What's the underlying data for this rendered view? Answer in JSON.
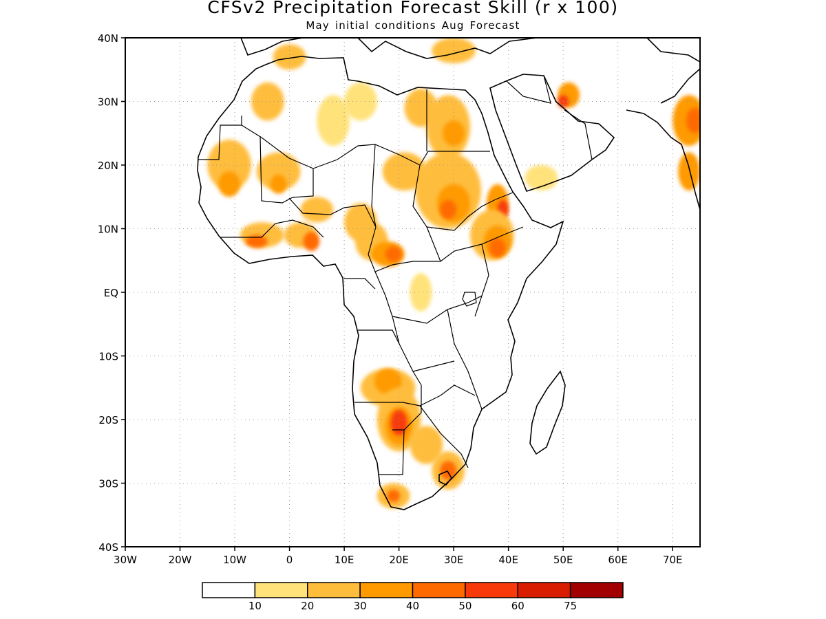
{
  "title": "CFSv2 Precipitation Forecast Skill (r x 100)",
  "subtitle": "May initial conditions  Aug Forecast",
  "map": {
    "projection": "lat-lon",
    "lon_range": [
      -30,
      75
    ],
    "lat_range": [
      -40,
      40
    ],
    "grid": "dotted",
    "lat_labels": [
      "40N",
      "30N",
      "20N",
      "10N",
      "EQ",
      "10S",
      "20S",
      "30S",
      "40S"
    ],
    "lon_labels": [
      "30W",
      "20W",
      "10W",
      "0",
      "10E",
      "20E",
      "30E",
      "40E",
      "50E",
      "60E",
      "70E"
    ]
  },
  "colorbar": {
    "colors": [
      "#ffffff",
      "#ffe27a",
      "#ffbd3c",
      "#ff9a00",
      "#ff6a00",
      "#f83a0a",
      "#d81d00",
      "#a20000"
    ],
    "labels": [
      "10",
      "20",
      "30",
      "40",
      "50",
      "60",
      "75"
    ]
  },
  "skill_regions": [
    {
      "lon": 0,
      "lat": 37,
      "rx": 3,
      "ry": 2,
      "level": 2
    },
    {
      "lon": -4,
      "lat": 30,
      "rx": 3,
      "ry": 3,
      "level": 2
    },
    {
      "lon": -11,
      "lat": 20,
      "rx": 4,
      "ry": 4,
      "level": 2
    },
    {
      "lon": -11,
      "lat": 17,
      "rx": 2,
      "ry": 2,
      "level": 3
    },
    {
      "lon": -2,
      "lat": 19,
      "rx": 4,
      "ry": 3,
      "level": 2
    },
    {
      "lon": -2,
      "lat": 17,
      "rx": 1.5,
      "ry": 1.5,
      "level": 3
    },
    {
      "lon": 8,
      "lat": 27,
      "rx": 3,
      "ry": 4,
      "level": 1
    },
    {
      "lon": 13,
      "lat": 30,
      "rx": 3,
      "ry": 3,
      "level": 1
    },
    {
      "lon": 24,
      "lat": 29,
      "rx": 3,
      "ry": 3,
      "level": 2
    },
    {
      "lon": 29,
      "lat": 26,
      "rx": 4,
      "ry": 5,
      "level": 2
    },
    {
      "lon": 30,
      "lat": 25,
      "rx": 2,
      "ry": 2,
      "level": 3
    },
    {
      "lon": 21,
      "lat": 19,
      "rx": 4,
      "ry": 3,
      "level": 2
    },
    {
      "lon": 29,
      "lat": 16,
      "rx": 6,
      "ry": 6,
      "level": 2
    },
    {
      "lon": 30,
      "lat": 14,
      "rx": 3,
      "ry": 3,
      "level": 3
    },
    {
      "lon": 29,
      "lat": 13,
      "rx": 1.5,
      "ry": 1.5,
      "level": 4
    },
    {
      "lon": 38,
      "lat": 14,
      "rx": 2,
      "ry": 3,
      "level": 3
    },
    {
      "lon": 39,
      "lat": 13,
      "rx": 1,
      "ry": 1.5,
      "level": 5
    },
    {
      "lon": 37,
      "lat": 9,
      "rx": 4,
      "ry": 4,
      "level": 2
    },
    {
      "lon": 38,
      "lat": 8,
      "rx": 2.5,
      "ry": 2.5,
      "level": 3
    },
    {
      "lon": 38,
      "lat": 7,
      "rx": 1.5,
      "ry": 1.5,
      "level": 4
    },
    {
      "lon": 46,
      "lat": 18,
      "rx": 3,
      "ry": 2,
      "level": 1
    },
    {
      "lon": 5,
      "lat": 13,
      "rx": 3,
      "ry": 2,
      "level": 2
    },
    {
      "lon": 13,
      "lat": 11,
      "rx": 3,
      "ry": 3,
      "level": 2
    },
    {
      "lon": -5,
      "lat": 9,
      "rx": 4,
      "ry": 2,
      "level": 2
    },
    {
      "lon": -6,
      "lat": 8,
      "rx": 2,
      "ry": 1,
      "level": 4
    },
    {
      "lon": 2,
      "lat": 9,
      "rx": 3,
      "ry": 2,
      "level": 2
    },
    {
      "lon": 4,
      "lat": 8,
      "rx": 1.5,
      "ry": 1.5,
      "level": 4
    },
    {
      "lon": 15,
      "lat": 8,
      "rx": 3,
      "ry": 3,
      "level": 2
    },
    {
      "lon": 18,
      "lat": 6,
      "rx": 3,
      "ry": 2,
      "level": 3
    },
    {
      "lon": 19,
      "lat": 6,
      "rx": 1.5,
      "ry": 1.2,
      "level": 4
    },
    {
      "lon": 24,
      "lat": 0,
      "rx": 2,
      "ry": 3,
      "level": 1
    },
    {
      "lon": 18,
      "lat": -15,
      "rx": 5,
      "ry": 3,
      "level": 2
    },
    {
      "lon": 18,
      "lat": -14,
      "rx": 2.5,
      "ry": 2,
      "level": 3
    },
    {
      "lon": 20,
      "lat": -20,
      "rx": 4,
      "ry": 5,
      "level": 2
    },
    {
      "lon": 20,
      "lat": -21,
      "rx": 2.5,
      "ry": 3,
      "level": 3
    },
    {
      "lon": 20,
      "lat": -20.5,
      "rx": 1.5,
      "ry": 2,
      "level": 5
    },
    {
      "lon": 25,
      "lat": -24,
      "rx": 3,
      "ry": 3,
      "level": 2
    },
    {
      "lon": 29,
      "lat": -28,
      "rx": 3,
      "ry": 3,
      "level": 2
    },
    {
      "lon": 29,
      "lat": -28,
      "rx": 1.5,
      "ry": 1.5,
      "level": 4
    },
    {
      "lon": 19,
      "lat": -32,
      "rx": 3,
      "ry": 2,
      "level": 2
    },
    {
      "lon": 19,
      "lat": -32,
      "rx": 1.2,
      "ry": 1,
      "level": 4
    },
    {
      "lon": 51,
      "lat": 31,
      "rx": 2,
      "ry": 2,
      "level": 3
    },
    {
      "lon": 50,
      "lat": 30,
      "rx": 1,
      "ry": 1,
      "level": 5
    },
    {
      "lon": 73,
      "lat": 27,
      "rx": 3,
      "ry": 4,
      "level": 3
    },
    {
      "lon": 74,
      "lat": 27,
      "rx": 1.5,
      "ry": 2,
      "level": 4
    },
    {
      "lon": 73,
      "lat": 19,
      "rx": 2,
      "ry": 3,
      "level": 3
    },
    {
      "lon": 30,
      "lat": 38,
      "rx": 4,
      "ry": 2,
      "level": 2
    }
  ]
}
